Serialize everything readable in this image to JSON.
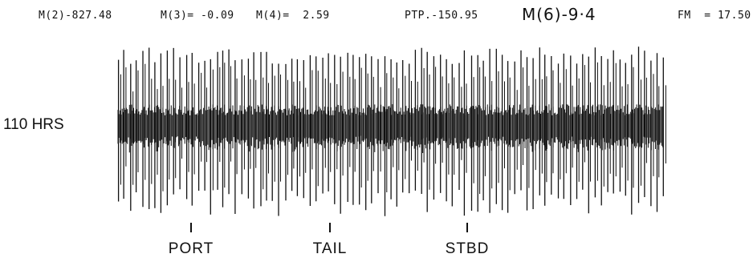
{
  "header": {
    "m2": "M(2)-827.48",
    "m3": "M(3)= -0.09",
    "m4": "M(4)=  2.59",
    "ptp": "PTP.-150.95",
    "m6": "M(6)-9·4",
    "fm": "FM  = 17.50"
  },
  "chart_data": {
    "type": "line",
    "row_label": "110 HRS",
    "position_markers": [
      {
        "label": "PORT"
      },
      {
        "label": "TAIL"
      },
      {
        "label": "STBD"
      }
    ],
    "pulse_count": 88,
    "grid": false
  }
}
